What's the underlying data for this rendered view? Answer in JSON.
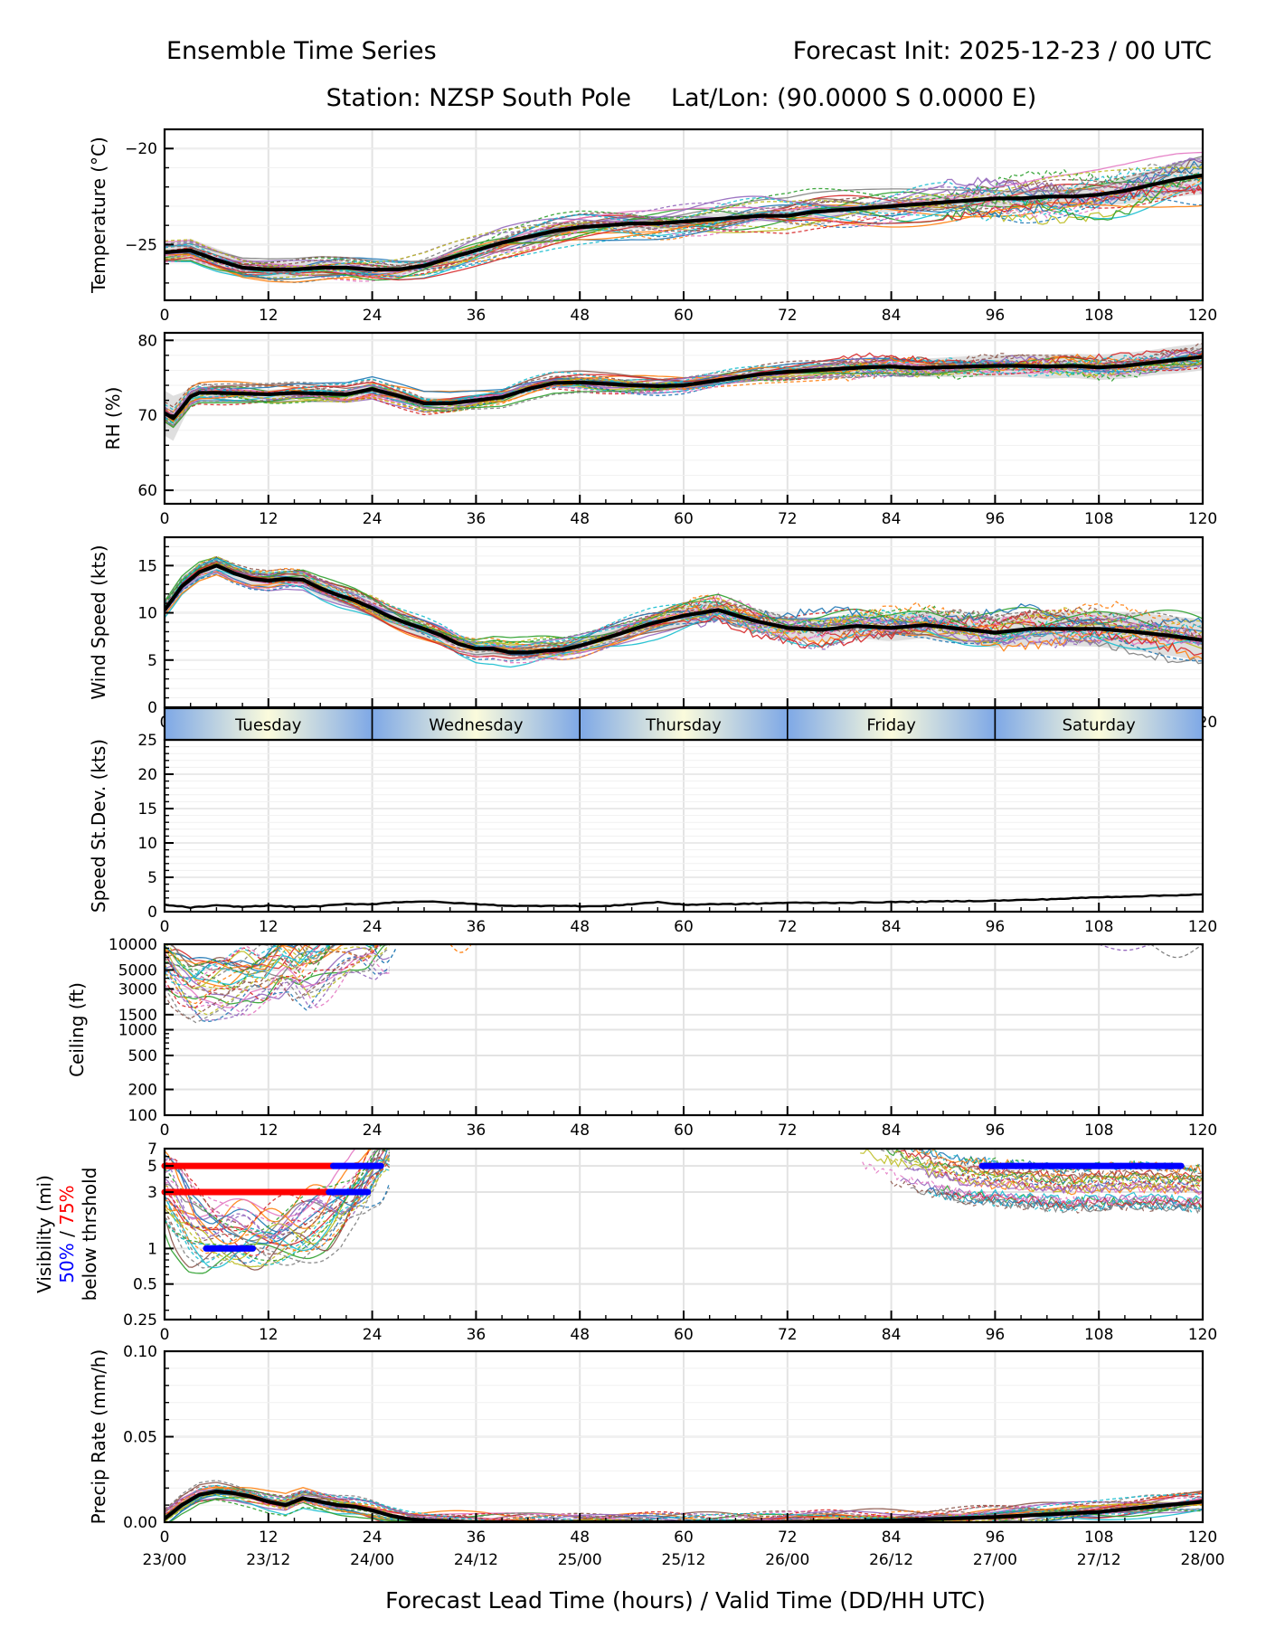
{
  "header": {
    "title_left": "Ensemble Time Series",
    "title_right": "Forecast Init: 2025-12-23 / 00 UTC",
    "station": "Station: NZSP South Pole",
    "latlon": "Lat/Lon: (90.0000 S 0.0000 E)"
  },
  "x_axis": {
    "label": "Forecast Lead Time (hours) / Valid Time (DD/HH UTC)",
    "range": [
      0,
      120
    ],
    "ticks": [
      0,
      12,
      24,
      36,
      48,
      60,
      72,
      84,
      96,
      108,
      120
    ],
    "tick_labels": [
      "0",
      "12",
      "24",
      "36",
      "48",
      "60",
      "72",
      "84",
      "96",
      "108",
      "120"
    ],
    "valid_time_labels": [
      "23/00",
      "23/12",
      "24/00",
      "24/12",
      "25/00",
      "25/12",
      "26/00",
      "26/12",
      "27/00",
      "27/12",
      "28/00"
    ]
  },
  "day_band": {
    "days": [
      "Tuesday",
      "Wednesday",
      "Thursday",
      "Friday",
      "Saturday"
    ],
    "colors": {
      "edge": "#7ea8e6",
      "center": "#fbfbdc"
    }
  },
  "colors": {
    "mean": "#000000",
    "spread": "#d9d9d9",
    "grid": "#e3e3e3",
    "members": [
      "#1f77b4",
      "#ff7f0e",
      "#2ca02c",
      "#d62728",
      "#9467bd",
      "#8c564b",
      "#e377c2",
      "#7f7f7f",
      "#bcbd22",
      "#17becf"
    ],
    "vis_50": "#0000ff",
    "vis_75": "#ff0000"
  },
  "chart_data": [
    {
      "type": "line",
      "id": "temperature",
      "ylabel": "Temperature (°C)",
      "ylim": [
        -27.9,
        -19
      ],
      "yticks": [
        -25,
        -20
      ],
      "ytick_labels": [
        "−25",
        "−20"
      ],
      "grid": true,
      "x": [
        0,
        3,
        6,
        9,
        12,
        15,
        18,
        21,
        24,
        27,
        30,
        33,
        36,
        39,
        42,
        45,
        48,
        51,
        54,
        57,
        60,
        63,
        66,
        69,
        72,
        75,
        78,
        81,
        84,
        87,
        90,
        93,
        96,
        99,
        102,
        105,
        108,
        111,
        114,
        117,
        120
      ],
      "mean": [
        -25.4,
        -25.3,
        -25.8,
        -26.2,
        -26.3,
        -26.3,
        -26.2,
        -26.2,
        -26.3,
        -26.3,
        -26.1,
        -25.7,
        -25.3,
        -24.9,
        -24.6,
        -24.3,
        -24.1,
        -24.0,
        -23.9,
        -23.9,
        -23.8,
        -23.7,
        -23.6,
        -23.5,
        -23.5,
        -23.3,
        -23.2,
        -23.1,
        -23.0,
        -22.9,
        -22.8,
        -22.7,
        -22.6,
        -22.6,
        -22.5,
        -22.5,
        -22.4,
        -22.2,
        -21.9,
        -21.6,
        -21.4
      ],
      "spread_halfwidth": [
        0.5,
        0.6,
        0.6,
        0.5,
        0.4,
        0.4,
        0.4,
        0.3,
        0.3,
        0.3,
        0.3,
        0.3,
        0.3,
        0.3,
        0.3,
        0.3,
        0.3,
        0.3,
        0.3,
        0.3,
        0.3,
        0.3,
        0.3,
        0.3,
        0.3,
        0.3,
        0.3,
        0.3,
        0.3,
        0.3,
        0.4,
        0.4,
        0.4,
        0.5,
        0.5,
        0.5,
        0.6,
        0.7,
        0.8,
        0.9,
        1.0
      ],
      "member_spread": 0.9,
      "n_members": 30
    },
    {
      "type": "line",
      "id": "rh",
      "ylabel": "RH (%)",
      "ylim": [
        58.2,
        81
      ],
      "yticks": [
        60,
        70,
        80
      ],
      "ytick_labels": [
        "60",
        "70",
        "80"
      ],
      "grid": true,
      "x": [
        0,
        1,
        2,
        3,
        4,
        6,
        9,
        12,
        15,
        18,
        21,
        24,
        27,
        30,
        33,
        36,
        39,
        42,
        45,
        48,
        51,
        54,
        57,
        60,
        63,
        66,
        69,
        72,
        75,
        78,
        81,
        84,
        87,
        90,
        93,
        96,
        99,
        102,
        105,
        108,
        111,
        114,
        117,
        120
      ],
      "mean": [
        70.3,
        69.6,
        71.0,
        72.5,
        73.0,
        73.0,
        72.9,
        72.8,
        73.0,
        72.9,
        72.8,
        73.5,
        72.6,
        71.6,
        71.6,
        72.0,
        72.4,
        73.5,
        74.3,
        74.4,
        74.2,
        74.0,
        73.9,
        74.0,
        74.5,
        75.0,
        75.5,
        75.8,
        76.0,
        76.2,
        76.4,
        76.5,
        76.3,
        76.4,
        76.5,
        76.6,
        76.6,
        76.5,
        76.6,
        76.4,
        76.6,
        77.0,
        77.4,
        77.8
      ],
      "spread_halfwidth": [
        3.0,
        3.0,
        2.0,
        1.2,
        0.8,
        0.6,
        0.6,
        0.6,
        0.6,
        0.6,
        0.6,
        0.7,
        0.8,
        0.8,
        0.7,
        0.7,
        0.7,
        0.6,
        0.6,
        0.6,
        0.6,
        0.6,
        0.6,
        0.6,
        0.6,
        0.6,
        0.7,
        0.7,
        0.8,
        0.8,
        0.9,
        1.0,
        1.2,
        1.3,
        1.4,
        1.5,
        1.5,
        1.6,
        1.6,
        1.7,
        1.7,
        1.7,
        1.8,
        1.8
      ],
      "member_spread": 1.4,
      "n_members": 30
    },
    {
      "type": "line",
      "id": "wind_speed",
      "ylabel": "Wind Speed (kts)",
      "ylim": [
        0,
        18
      ],
      "yticks": [
        0,
        5,
        10,
        15
      ],
      "ytick_labels": [
        "0",
        "5",
        "10",
        "15"
      ],
      "grid": true,
      "x": [
        0,
        2,
        4,
        6,
        8,
        10,
        12,
        14,
        16,
        18,
        20,
        22,
        24,
        26,
        28,
        30,
        32,
        34,
        36,
        38,
        40,
        42,
        44,
        46,
        48,
        52,
        56,
        60,
        64,
        68,
        72,
        76,
        80,
        84,
        88,
        92,
        96,
        100,
        104,
        108,
        112,
        116,
        120
      ],
      "mean": [
        10.3,
        12.8,
        14.3,
        15.0,
        14.2,
        13.6,
        13.4,
        13.6,
        13.5,
        12.6,
        11.9,
        11.3,
        10.5,
        9.6,
        8.9,
        8.3,
        7.6,
        6.7,
        6.2,
        6.2,
        5.8,
        5.8,
        6.0,
        6.1,
        6.5,
        7.6,
        8.8,
        9.7,
        10.3,
        9.2,
        8.4,
        8.2,
        8.6,
        8.4,
        8.7,
        8.3,
        7.9,
        8.3,
        8.3,
        8.3,
        8.0,
        7.6,
        7.1
      ],
      "spread_halfwidth": [
        1.0,
        1.0,
        0.9,
        0.9,
        0.8,
        0.8,
        0.8,
        0.8,
        0.8,
        0.9,
        0.9,
        0.9,
        1.0,
        1.0,
        1.0,
        1.0,
        0.9,
        0.8,
        0.8,
        0.8,
        0.8,
        0.8,
        0.8,
        0.8,
        0.8,
        0.8,
        0.9,
        1.0,
        1.0,
        1.1,
        1.2,
        1.3,
        1.3,
        1.4,
        1.4,
        1.5,
        1.6,
        1.7,
        1.8,
        1.9,
        2.0,
        2.1,
        2.2
      ],
      "member_spread": 1.6,
      "n_members": 30
    },
    {
      "type": "line",
      "id": "speed_stdev",
      "ylabel": "Speed St.Dev. (kts)",
      "ylim": [
        0,
        25
      ],
      "yticks": [
        0,
        5,
        10,
        15,
        20,
        25
      ],
      "ytick_labels": [
        "0",
        "5",
        "10",
        "15",
        "20",
        "25"
      ],
      "grid": true,
      "x": [
        0,
        3,
        6,
        9,
        12,
        15,
        18,
        21,
        24,
        27,
        30,
        33,
        36,
        39,
        42,
        45,
        48,
        51,
        54,
        57,
        60,
        63,
        66,
        69,
        72,
        78,
        84,
        90,
        96,
        102,
        108,
        114,
        120
      ],
      "values": [
        1.0,
        0.6,
        0.9,
        0.7,
        0.9,
        0.7,
        0.8,
        1.1,
        1.1,
        1.4,
        1.5,
        1.3,
        1.1,
        0.9,
        0.8,
        0.9,
        0.8,
        0.8,
        1.1,
        1.4,
        1.0,
        1.1,
        1.1,
        1.2,
        1.3,
        1.3,
        1.4,
        1.5,
        1.6,
        1.8,
        2.1,
        2.3,
        2.5
      ]
    },
    {
      "type": "line",
      "id": "ceiling",
      "ylabel": "Ceiling (ft)",
      "yscale": "log",
      "ylim": [
        100,
        10000
      ],
      "yticks": [
        100,
        200,
        500,
        1000,
        1500,
        3000,
        5000,
        10000
      ],
      "ytick_labels": [
        "100",
        "200",
        "500",
        "1000",
        "1500",
        "3000",
        "5000",
        "10000"
      ],
      "grid": true,
      "note": "Member ceilings below 10000 ft mainly during hours 0-26, minimum about 2000 ft near hour 4; scattered dips near hours 35, 110-120",
      "member_min_curve": {
        "x": [
          0,
          2,
          4,
          6,
          8,
          10,
          12,
          14,
          16,
          18,
          20,
          22,
          24,
          26
        ],
        "values": [
          5000,
          2800,
          2100,
          2400,
          2600,
          3500,
          3000,
          4500,
          3000,
          4500,
          6500,
          8000,
          7000,
          10000
        ]
      }
    },
    {
      "type": "line",
      "id": "visibility",
      "ylabel": "Visibility (mi)",
      "ylabel_line2_parts": [
        "50%",
        " / ",
        "75%"
      ],
      "ylabel_line3": "below thrshold",
      "yscale": "log",
      "ylim": [
        0.25,
        7
      ],
      "yticks": [
        0.25,
        0.5,
        1,
        3,
        5,
        7
      ],
      "ytick_labels": [
        "0.25",
        "0.5",
        "1",
        "3",
        "5",
        "7"
      ],
      "grid": true,
      "member_median_curve": {
        "x": [
          0,
          2,
          4,
          6,
          8,
          10,
          12,
          14,
          16,
          18,
          20,
          22,
          24,
          26
        ],
        "values": [
          3.0,
          1.6,
          1.1,
          0.95,
          1.0,
          1.05,
          1.1,
          1.2,
          1.3,
          1.4,
          1.6,
          2.2,
          3.5,
          7.0
        ]
      },
      "member_late_curve": {
        "x": [
          80,
          84,
          88,
          92,
          96,
          100,
          104,
          108,
          112,
          116,
          120
        ],
        "values": [
          7.0,
          5.5,
          4.5,
          3.8,
          3.6,
          3.4,
          3.2,
          3.3,
          3.4,
          3.3,
          3.2
        ]
      },
      "threshold_bars": [
        {
          "threshold": 5,
          "level": "75%",
          "x_start": 0,
          "x_end": 19.5
        },
        {
          "threshold": 5,
          "level": "50%",
          "x_start": 19.5,
          "x_end": 25.0
        },
        {
          "threshold": 3,
          "level": "75%",
          "x_start": 0,
          "x_end": 19.0
        },
        {
          "threshold": 3,
          "level": "50%",
          "x_start": 19.0,
          "x_end": 23.5
        },
        {
          "threshold": 1,
          "level": "50%",
          "x_start": 4.8,
          "x_end": 10.2
        },
        {
          "threshold": 5,
          "level": "50%",
          "x_start": 94.5,
          "x_end": 117.5
        }
      ]
    },
    {
      "type": "line",
      "id": "precip_rate",
      "ylabel": "Precip Rate (mm/h)",
      "ylim": [
        0,
        0.1
      ],
      "yticks": [
        0.0,
        0.05,
        0.1
      ],
      "ytick_labels": [
        "0.00",
        "0.05",
        "0.10"
      ],
      "grid": true,
      "x": [
        0,
        1,
        2,
        3,
        4,
        5,
        6,
        8,
        10,
        12,
        14,
        16,
        18,
        20,
        22,
        24,
        26,
        28,
        30,
        36,
        48,
        60,
        72,
        84,
        90,
        96,
        100,
        104,
        108,
        112,
        116,
        120
      ],
      "mean": [
        0.002,
        0.006,
        0.01,
        0.013,
        0.016,
        0.017,
        0.018,
        0.017,
        0.015,
        0.012,
        0.01,
        0.014,
        0.012,
        0.01,
        0.009,
        0.007,
        0.004,
        0.002,
        0.001,
        0.0,
        0.0,
        0.0,
        0.0,
        0.001,
        0.002,
        0.003,
        0.004,
        0.005,
        0.006,
        0.008,
        0.01,
        0.012
      ],
      "member_spread": 0.006,
      "n_members": 30
    }
  ]
}
